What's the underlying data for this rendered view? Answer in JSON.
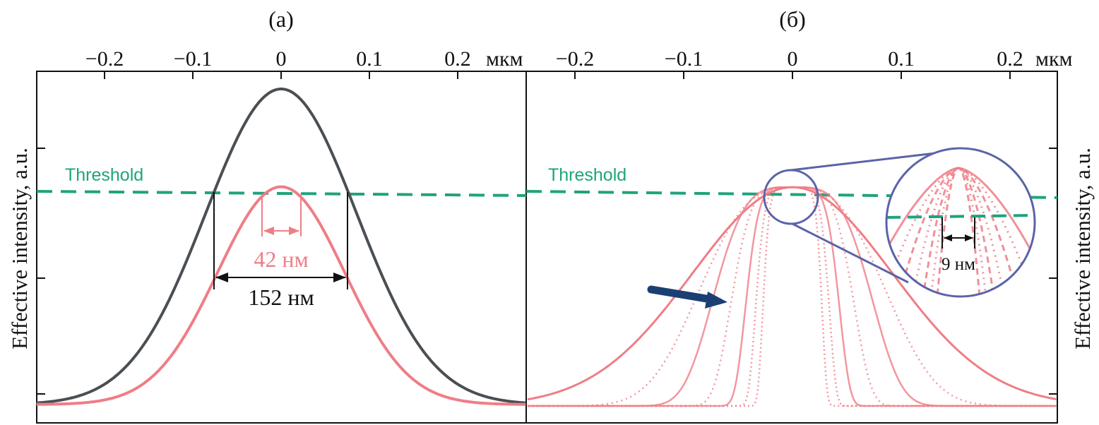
{
  "chart_data": [
    {
      "panel": "(а)",
      "type": "line",
      "x_unit": "мкм",
      "xlim": [
        -0.275,
        0.275
      ],
      "x_ticks": [
        -0.2,
        -0.1,
        0,
        0.1,
        0.2
      ],
      "x_tick_labels": [
        "−0.2",
        "−0.1",
        "0",
        "0.1",
        "0.2"
      ],
      "ylabel": "Effective  intensity, a.u.",
      "ylim": [
        0,
        1.0
      ],
      "y_ticks": [
        0.03,
        0.42,
        0.82
      ],
      "threshold": {
        "label": "Threshold",
        "y": 0.673,
        "color": "#1fa37c"
      },
      "series": [
        {
          "color": "#4a4f54",
          "peak": 1.0,
          "x": [
            -0.275,
            -0.2,
            -0.1,
            -0.075,
            0,
            0.075,
            0.1,
            0.2,
            0.275
          ],
          "y": [
            0.0,
            0.06,
            0.5,
            0.673,
            1.0,
            0.673,
            0.5,
            0.06,
            0.0
          ]
        },
        {
          "color": "#ef7d86",
          "peak": 0.69,
          "x": [
            -0.275,
            -0.2,
            -0.1,
            -0.021,
            0,
            0.021,
            0.1,
            0.2,
            0.275
          ],
          "y": [
            0.0,
            0.05,
            0.38,
            0.673,
            0.69,
            0.673,
            0.38,
            0.05,
            0.0
          ]
        }
      ],
      "annotations": [
        {
          "text": "42 нм",
          "width": 0.042,
          "color": "#ec7f86"
        },
        {
          "text": "152 нм",
          "width": 0.152,
          "color": "#111111"
        }
      ]
    },
    {
      "panel": "(б)",
      "type": "line",
      "x_unit": "мкм",
      "xlim": [
        -0.24,
        0.24
      ],
      "x_ticks": [
        -0.2,
        -0.1,
        0,
        0.1,
        0.2
      ],
      "x_tick_labels": [
        "−0.2",
        "−0.1",
        "0",
        "0.1",
        "0.2"
      ],
      "ylabel": "Effective  intensity, a.u.",
      "threshold": {
        "label": "Threshold",
        "y": 0.66,
        "color": "#1fa37c"
      },
      "series_widths_um": [
        0.13,
        0.1,
        0.08,
        0.06,
        0.045,
        0.035,
        0.028
      ],
      "series_peak": 0.69,
      "series_color": "#ef7d86",
      "arrow_color": "#1b3f73",
      "inset": {
        "label": "9 нм",
        "width": 0.009,
        "border_color": "#5b63a8"
      }
    }
  ]
}
